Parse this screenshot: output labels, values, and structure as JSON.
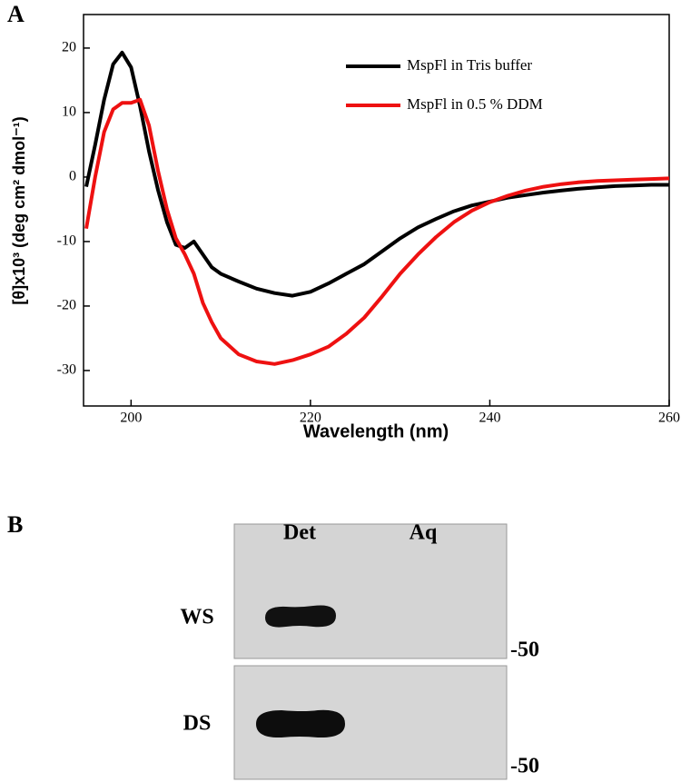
{
  "panel_labels": [
    "A",
    "B"
  ],
  "chart_data": {
    "type": "line",
    "x_label": "Wavelength (nm)",
    "y_label": "[θ]x10³ (deg cm² dmol⁻¹)",
    "x": [
      195,
      196,
      197,
      198,
      199,
      200,
      201,
      202,
      203,
      204,
      205,
      206,
      207,
      208,
      209,
      210,
      212,
      214,
      216,
      218,
      220,
      222,
      224,
      226,
      228,
      230,
      232,
      234,
      236,
      238,
      240,
      242,
      244,
      246,
      248,
      250,
      252,
      254,
      256,
      258,
      260
    ],
    "series": [
      {
        "name": "MspFl in Tris buffer",
        "color": "#000000",
        "values": [
          -1.5,
          5,
          12,
          17.5,
          19.3,
          17,
          11,
          4,
          -2,
          -7,
          -10.5,
          -11,
          -10,
          -12,
          -14,
          -15,
          -16.2,
          -17.3,
          -18,
          -18.4,
          -17.8,
          -16.5,
          -15,
          -13.5,
          -11.5,
          -9.5,
          -7.8,
          -6.5,
          -5.3,
          -4.4,
          -3.8,
          -3.2,
          -2.8,
          -2.4,
          -2.1,
          -1.8,
          -1.6,
          -1.4,
          -1.3,
          -1.2,
          -1.2
        ]
      },
      {
        "name": "MspFl in 0.5 % DDM",
        "color": "#ee1111",
        "values": [
          -8,
          0,
          7,
          10.5,
          11.5,
          11.5,
          12,
          8,
          1,
          -5,
          -9.5,
          -12,
          -15,
          -19.5,
          -22.5,
          -25,
          -27.5,
          -28.6,
          -29,
          -28.4,
          -27.5,
          -26.3,
          -24.3,
          -21.8,
          -18.5,
          -15,
          -12,
          -9.3,
          -7,
          -5.2,
          -3.9,
          -2.9,
          -2.1,
          -1.5,
          -1.1,
          -0.8,
          -0.6,
          -0.5,
          -0.4,
          -0.3,
          -0.2
        ]
      }
    ],
    "xlim": [
      194.7,
      260
    ],
    "xticks": [
      200,
      220,
      240,
      260
    ],
    "ylim": [
      -35.5,
      25.2
    ],
    "yticks": [
      -30,
      -20,
      -10,
      0,
      10,
      20
    ],
    "legend": "upper right"
  },
  "blot": {
    "columns": [
      "Det",
      "Aq"
    ],
    "rows": [
      "WS",
      "DS"
    ],
    "markers": [
      "-50",
      "-50"
    ]
  }
}
